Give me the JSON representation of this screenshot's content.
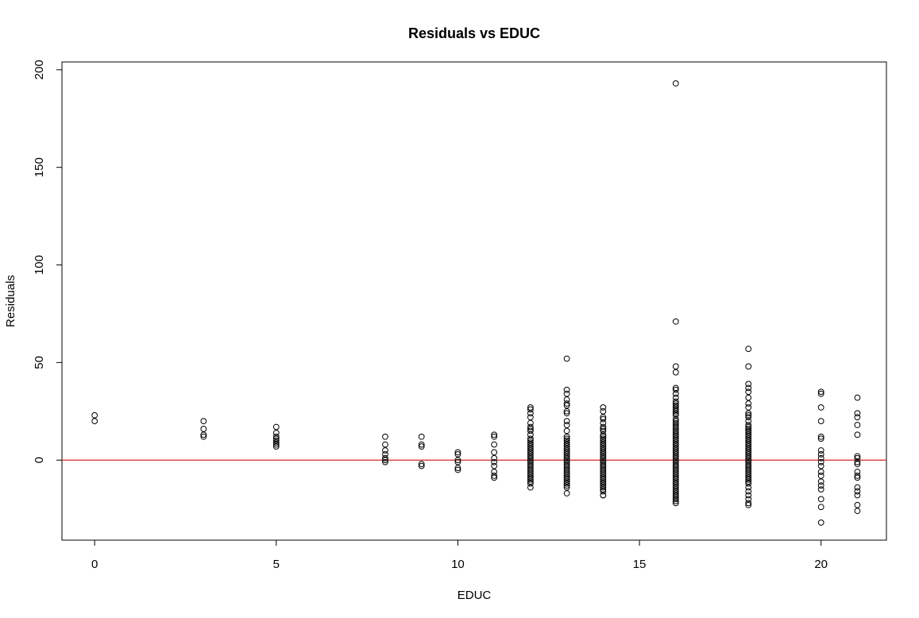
{
  "chart_data": {
    "type": "scatter",
    "title": "Residuals vs EDUC",
    "xlabel": "EDUC",
    "ylabel": "Residuals",
    "xlim": [
      -0.9,
      21.8
    ],
    "ylim": [
      -41,
      204
    ],
    "xticks": [
      0,
      5,
      10,
      15,
      20
    ],
    "yticks": [
      0,
      50,
      100,
      150,
      200
    ],
    "reference_line": {
      "y": 0,
      "color": "#d62728"
    },
    "marker": "open-circle",
    "grid": false,
    "legend": "none",
    "groups": [
      {
        "x": 0,
        "y": [
          23,
          20
        ]
      },
      {
        "x": 3,
        "y": [
          20,
          16,
          13,
          12
        ]
      },
      {
        "x": 5,
        "y": [
          17,
          14,
          12,
          11,
          10,
          9,
          8,
          7
        ]
      },
      {
        "x": 8,
        "y": [
          12,
          8,
          5,
          3,
          1,
          0,
          -1
        ]
      },
      {
        "x": 9,
        "y": [
          12,
          8,
          7,
          -2,
          -3
        ]
      },
      {
        "x": 10,
        "y": [
          4,
          3,
          0,
          -1,
          -4,
          -5
        ]
      },
      {
        "x": 11,
        "y": [
          13,
          12,
          8,
          4,
          1,
          -1,
          -3,
          -6,
          -8,
          -9
        ]
      },
      {
        "x": 12,
        "y": [
          27,
          26,
          24,
          22,
          19,
          17,
          16,
          15,
          13,
          11,
          10,
          9,
          8,
          7,
          6,
          5,
          4,
          3,
          2,
          1,
          0,
          -1,
          -2,
          -3,
          -4,
          -5,
          -6,
          -7,
          -8,
          -9,
          -10,
          -11,
          -12,
          -14
        ]
      },
      {
        "x": 13,
        "y": [
          52,
          36,
          34,
          31,
          29,
          28,
          25,
          24,
          20,
          18,
          15,
          12,
          11,
          10,
          9,
          8,
          7,
          6,
          5,
          4,
          3,
          2,
          1,
          0,
          -1,
          -2,
          -3,
          -4,
          -5,
          -6,
          -7,
          -8,
          -9,
          -10,
          -11,
          -12,
          -13,
          -14,
          -17
        ]
      },
      {
        "x": 14,
        "y": [
          27,
          25,
          22,
          21,
          19,
          17,
          16,
          15,
          13,
          12,
          11,
          10,
          9,
          8,
          7,
          6,
          5,
          4,
          3,
          2,
          1,
          0,
          -1,
          -2,
          -3,
          -4,
          -5,
          -6,
          -7,
          -8,
          -9,
          -10,
          -11,
          -12,
          -13,
          -14,
          -15,
          -16,
          -18,
          -18
        ]
      },
      {
        "x": 16,
        "y": [
          193,
          71,
          48,
          45,
          37,
          36,
          34,
          32,
          30,
          29,
          28,
          27,
          26,
          25,
          24,
          23,
          21,
          20,
          19,
          18,
          17,
          16,
          15,
          14,
          13,
          12,
          11,
          10,
          9,
          8,
          7,
          6,
          5,
          4,
          3,
          2,
          1,
          0,
          -1,
          -2,
          -3,
          -4,
          -5,
          -6,
          -7,
          -8,
          -9,
          -10,
          -11,
          -12,
          -13,
          -14,
          -15,
          -16,
          -17,
          -18,
          -19,
          -20,
          -21,
          -22
        ]
      },
      {
        "x": 18,
        "y": [
          57,
          48,
          39,
          37,
          35,
          32,
          29,
          27,
          24,
          23,
          22,
          20,
          18,
          17,
          16,
          15,
          14,
          13,
          12,
          11,
          10,
          9,
          8,
          7,
          6,
          5,
          4,
          3,
          2,
          1,
          0,
          -1,
          -2,
          -3,
          -4,
          -5,
          -6,
          -7,
          -8,
          -9,
          -10,
          -11,
          -12,
          -14,
          -16,
          -18,
          -20,
          -22,
          -23
        ]
      },
      {
        "x": 20,
        "y": [
          35,
          34,
          27,
          20,
          12,
          11,
          5,
          3,
          1,
          -1,
          -3,
          -6,
          -8,
          -11,
          -13,
          -15,
          -20,
          -24,
          -32
        ]
      },
      {
        "x": 21,
        "y": [
          32,
          24,
          22,
          18,
          13,
          2,
          1,
          -1,
          -2,
          -6,
          -8,
          -9,
          -14,
          -16,
          -18,
          -23,
          -26
        ]
      }
    ]
  }
}
